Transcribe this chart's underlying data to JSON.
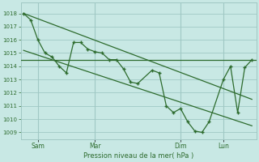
{
  "background_color": "#c8e8e4",
  "grid_color": "#a0c8c4",
  "line_color": "#2d6b2d",
  "marker_color": "#2d6b2d",
  "ylabel_text": "Pression niveau de la mer( hPa )",
  "ylim": [
    1008.5,
    1018.8
  ],
  "yticks": [
    1009,
    1010,
    1011,
    1012,
    1013,
    1014,
    1015,
    1016,
    1017,
    1018
  ],
  "xtick_positions": [
    1,
    5,
    11,
    14
  ],
  "xtick_labels": [
    "Sam",
    "Mar",
    "Dim",
    "Lun"
  ],
  "main_x": [
    0,
    0.5,
    1,
    1.5,
    2,
    2.5,
    3,
    3.5,
    4,
    4.5,
    5,
    5.5,
    6,
    6.5,
    7,
    7.5,
    8,
    9,
    9.5,
    10,
    10.5,
    11,
    11.5,
    12,
    12.5,
    13,
    14,
    14.5,
    15,
    15.5,
    16
  ],
  "main_y": [
    1018.0,
    1017.5,
    1016.0,
    1015.0,
    1014.7,
    1014.0,
    1013.5,
    1015.8,
    1015.8,
    1015.3,
    1015.1,
    1015.0,
    1014.5,
    1014.5,
    1013.8,
    1012.8,
    1012.7,
    1013.7,
    1013.5,
    1011.0,
    1010.5,
    1010.8,
    1009.8,
    1009.1,
    1009.0,
    1009.8,
    1013.0,
    1014.0,
    1010.5,
    1013.9,
    1014.5
  ],
  "trend1_x": [
    0,
    16
  ],
  "trend1_y": [
    1018.0,
    1011.5
  ],
  "trend2_x": [
    0,
    16
  ],
  "trend2_y": [
    1015.2,
    1009.5
  ],
  "hline_y": 1014.5,
  "vlines_x": [
    1,
    5,
    11,
    14
  ],
  "xlim": [
    -0.2,
    16.3
  ],
  "font_color": "#2d6b2d"
}
